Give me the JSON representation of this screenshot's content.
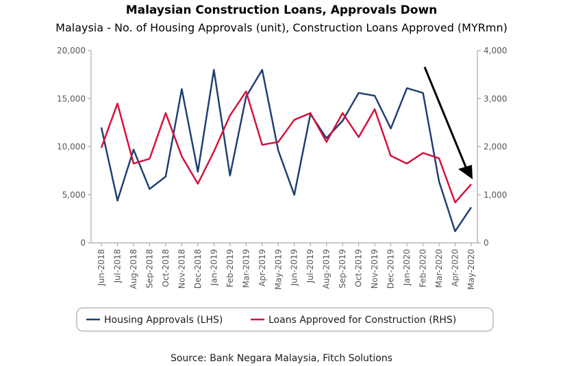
{
  "chart_data": {
    "type": "line",
    "title": "Malaysian Construction Loans, Approvals Down",
    "subtitle": "Malaysia - No. of Housing Approvals (unit), Construction Loans Approved (MYRmn)",
    "source": "Source: Bank Negara Malaysia, Fitch Solutions",
    "categories": [
      "Jun-2018",
      "Jul-2018",
      "Aug-2018",
      "Sep-2018",
      "Oct-2018",
      "Nov-2018",
      "Dec-2018",
      "Jan-2019",
      "Feb-2019",
      "Mar-2019",
      "Apr-2019",
      "May-2019",
      "Jun-2019",
      "Jul-2019",
      "Aug-2019",
      "Sep-2019",
      "Oct-2019",
      "Nov-2019",
      "Dec-2019",
      "Jan-2020",
      "Feb-2020",
      "Mar-2020",
      "Apr-2020",
      "May-2020"
    ],
    "y_left": {
      "ticks": [
        "0",
        "5,000",
        "10,000",
        "15,000",
        "20,000"
      ],
      "ylim": [
        0,
        20000
      ]
    },
    "y_right": {
      "ticks": [
        "0",
        "1,000",
        "2,000",
        "3,000",
        "4,000"
      ],
      "ylim": [
        0,
        4000
      ]
    },
    "series": [
      {
        "name": "Housing Approvals (LHS)",
        "axis": "left",
        "color": "#1f3f73",
        "values": [
          12000,
          4400,
          9700,
          5600,
          6900,
          16000,
          7400,
          18000,
          7000,
          15200,
          18000,
          9600,
          5000,
          13400,
          10900,
          12700,
          15600,
          15300,
          11900,
          16100,
          15600,
          6400,
          1200,
          3700
        ]
      },
      {
        "name": "Loans Approved for Construction (RHS)",
        "axis": "right",
        "color": "#d4113d",
        "values": [
          1980,
          2900,
          1650,
          1750,
          2700,
          1800,
          1230,
          1900,
          2650,
          3150,
          2040,
          2100,
          2560,
          2700,
          2100,
          2700,
          2200,
          2780,
          1810,
          1650,
          1870,
          1760,
          840,
          1220
        ]
      }
    ],
    "annotations": [
      {
        "type": "arrow",
        "color": "#000000",
        "meaning": "downward trend"
      }
    ],
    "legend": "bottom-center",
    "grid": false
  }
}
